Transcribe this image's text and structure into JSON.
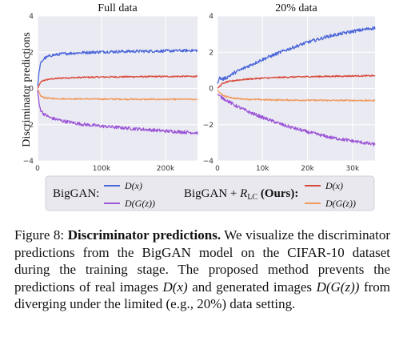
{
  "figure": {
    "ylabel": "Discriminator predictions",
    "legend": {
      "baseline_label": "BigGAN:",
      "ours_label_prefix": "BigGAN + ",
      "ours_label_sub": "LC",
      "ours_label_suffix": " (Ours):",
      "dx": "D(x)",
      "dgz": "D(G(z))"
    },
    "colors": {
      "baseline_real": "#4a66d8",
      "baseline_fake": "#9b55d6",
      "ours_real": "#d9493b",
      "ours_fake": "#f0995a",
      "plot_bg": "#eaeaf2",
      "grid": "#ffffff"
    }
  },
  "chart_data": [
    {
      "type": "line",
      "title": "Full data",
      "xlim": [
        0,
        250000
      ],
      "ylim": [
        -4,
        4
      ],
      "xticks": [
        0,
        100000,
        200000
      ],
      "xtick_labels": [
        "0",
        "100k",
        "200k"
      ],
      "yticks": [
        -4,
        -2,
        0,
        2,
        4
      ],
      "ytick_labels": [
        "−4",
        "−2",
        "0",
        "2",
        "4"
      ],
      "grid": true,
      "series": [
        {
          "name": "BigGAN: D(x)",
          "x": [
            0,
            2500,
            5000,
            10000,
            20000,
            40000,
            70000,
            100000,
            150000,
            200000,
            250000
          ],
          "y": [
            0.1,
            1.0,
            1.4,
            1.65,
            1.82,
            1.92,
            1.98,
            2.02,
            2.05,
            2.07,
            2.1
          ]
        },
        {
          "name": "BigGAN: D(G(z))",
          "x": [
            0,
            2500,
            5000,
            10000,
            20000,
            40000,
            70000,
            100000,
            150000,
            200000,
            250000
          ],
          "y": [
            -0.1,
            -0.9,
            -1.2,
            -1.42,
            -1.62,
            -1.8,
            -1.98,
            -2.08,
            -2.22,
            -2.35,
            -2.45
          ]
        },
        {
          "name": "BigGAN + R_LC (Ours): D(x)",
          "x": [
            0,
            5000,
            10000,
            20000,
            40000,
            80000,
            120000,
            160000,
            200000,
            250000
          ],
          "y": [
            0.0,
            0.35,
            0.45,
            0.52,
            0.58,
            0.62,
            0.64,
            0.65,
            0.66,
            0.67
          ]
        },
        {
          "name": "BigGAN + R_LC (Ours): D(G(z))",
          "x": [
            0,
            5000,
            10000,
            20000,
            40000,
            80000,
            120000,
            160000,
            200000,
            250000
          ],
          "y": [
            -0.05,
            -0.42,
            -0.5,
            -0.55,
            -0.57,
            -0.58,
            -0.59,
            -0.6,
            -0.6,
            -0.6
          ]
        }
      ]
    },
    {
      "type": "line",
      "title": "20% data",
      "xlim": [
        0,
        35000
      ],
      "ylim": [
        -4,
        4
      ],
      "xticks": [
        0,
        10000,
        20000,
        30000
      ],
      "xtick_labels": [
        "0",
        "10k",
        "20k",
        "30k"
      ],
      "yticks": [
        -4,
        -2,
        0,
        2,
        4
      ],
      "ytick_labels": [
        "−4",
        "−2",
        "0",
        "2",
        "4"
      ],
      "grid": true,
      "series": [
        {
          "name": "BigGAN: D(x)",
          "x": [
            0,
            500,
            1000,
            2000,
            4000,
            7000,
            10000,
            15000,
            20000,
            25000,
            30000,
            35000
          ],
          "y": [
            0.3,
            0.6,
            0.5,
            0.6,
            0.9,
            1.25,
            1.6,
            2.1,
            2.55,
            2.9,
            3.15,
            3.35
          ]
        },
        {
          "name": "BigGAN: D(G(z))",
          "x": [
            0,
            500,
            1000,
            2000,
            4000,
            7000,
            10000,
            15000,
            20000,
            25000,
            30000,
            35000
          ],
          "y": [
            -0.3,
            -0.45,
            -0.5,
            -0.65,
            -0.95,
            -1.3,
            -1.6,
            -2.05,
            -2.4,
            -2.7,
            -2.9,
            -3.1
          ]
        },
        {
          "name": "BigGAN + R_LC (Ours): D(x)",
          "x": [
            0,
            1000,
            2000,
            4000,
            7000,
            10000,
            15000,
            20000,
            25000,
            30000,
            35000
          ],
          "y": [
            0.0,
            0.25,
            0.35,
            0.45,
            0.52,
            0.57,
            0.62,
            0.65,
            0.67,
            0.69,
            0.7
          ]
        },
        {
          "name": "BigGAN + R_LC (Ours): D(G(z))",
          "x": [
            0,
            1000,
            2000,
            4000,
            7000,
            10000,
            15000,
            20000,
            25000,
            30000,
            35000
          ],
          "y": [
            -0.1,
            -0.35,
            -0.45,
            -0.55,
            -0.6,
            -0.62,
            -0.64,
            -0.65,
            -0.66,
            -0.66,
            -0.67
          ]
        }
      ]
    }
  ],
  "caption": {
    "prefix": "Figure 8: ",
    "bold": "Discriminator predictions.",
    "seg1": " We visualize the discriminator predictions from the BigGAN model on the CIFAR-10 dataset during the training stage. The proposed method prevents the predictions of real images ",
    "math1": "D(x)",
    "seg2": " and generated images ",
    "math2": "D(G(z))",
    "seg3": " from diverging under the limited (e.g., 20%) data setting."
  }
}
